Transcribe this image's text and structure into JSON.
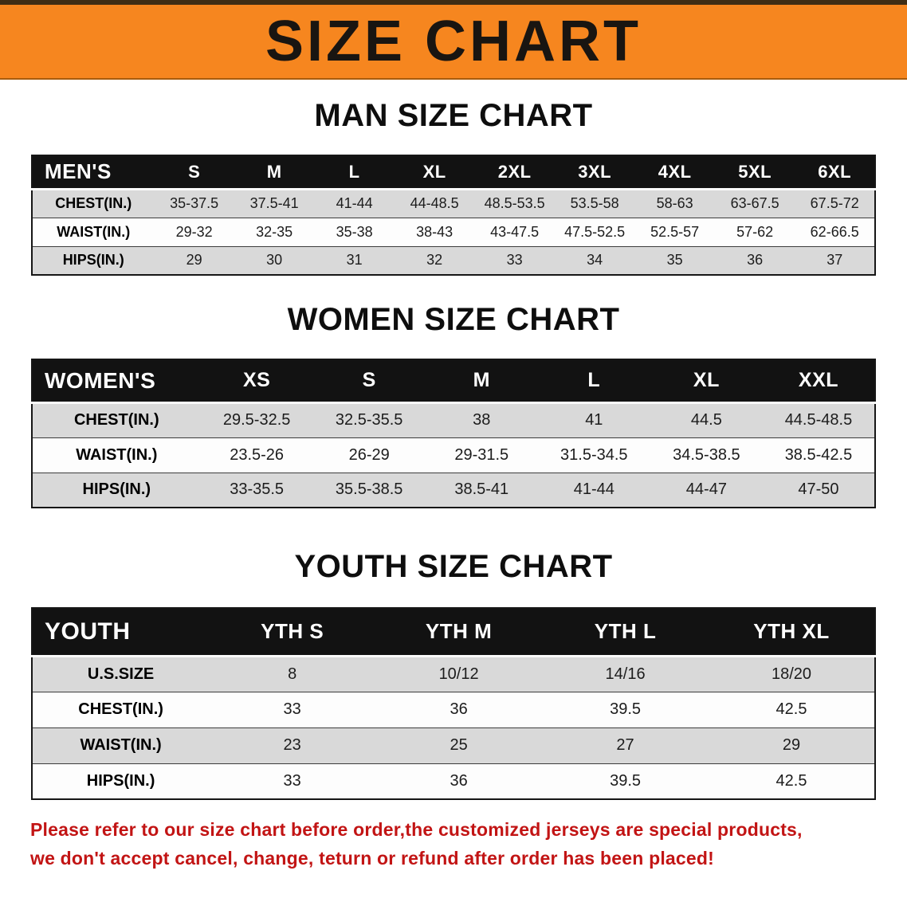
{
  "banner": {
    "title": "SIZE CHART"
  },
  "sections": [
    {
      "id": "men",
      "heading": "MAN SIZE CHART",
      "table": {
        "header": [
          "MEN'S",
          "S",
          "M",
          "L",
          "XL",
          "2XL",
          "3XL",
          "4XL",
          "5XL",
          "6XL"
        ],
        "rows": [
          {
            "label": "CHEST(IN.)",
            "values": [
              "35-37.5",
              "37.5-41",
              "41-44",
              "44-48.5",
              "48.5-53.5",
              "53.5-58",
              "58-63",
              "63-67.5",
              "67.5-72"
            ]
          },
          {
            "label": "WAIST(IN.)",
            "values": [
              "29-32",
              "32-35",
              "35-38",
              "38-43",
              "43-47.5",
              "47.5-52.5",
              "52.5-57",
              "57-62",
              "62-66.5"
            ]
          },
          {
            "label": "HIPS(IN.)",
            "values": [
              "29",
              "30",
              "31",
              "32",
              "33",
              "34",
              "35",
              "36",
              "37"
            ]
          }
        ]
      }
    },
    {
      "id": "women",
      "heading": "WOMEN SIZE CHART",
      "table": {
        "header": [
          "WOMEN'S",
          "XS",
          "S",
          "M",
          "L",
          "XL",
          "XXL"
        ],
        "rows": [
          {
            "label": "CHEST(IN.)",
            "values": [
              "29.5-32.5",
              "32.5-35.5",
              "38",
              "41",
              "44.5",
              "44.5-48.5"
            ]
          },
          {
            "label": "WAIST(IN.)",
            "values": [
              "23.5-26",
              "26-29",
              "29-31.5",
              "31.5-34.5",
              "34.5-38.5",
              "38.5-42.5"
            ]
          },
          {
            "label": "HIPS(IN.)",
            "values": [
              "33-35.5",
              "35.5-38.5",
              "38.5-41",
              "41-44",
              "44-47",
              "47-50"
            ]
          }
        ]
      }
    },
    {
      "id": "youth",
      "heading": "YOUTH SIZE CHART",
      "table": {
        "header": [
          "YOUTH",
          "YTH S",
          "YTH M",
          "YTH L",
          "YTH XL"
        ],
        "rows": [
          {
            "label": "U.S.SIZE",
            "values": [
              "8",
              "10/12",
              "14/16",
              "18/20"
            ]
          },
          {
            "label": "CHEST(IN.)",
            "values": [
              "33",
              "36",
              "39.5",
              "42.5"
            ]
          },
          {
            "label": "WAIST(IN.)",
            "values": [
              "23",
              "25",
              "27",
              "29"
            ]
          },
          {
            "label": "HIPS(IN.)",
            "values": [
              "33",
              "36",
              "39.5",
              "42.5"
            ]
          }
        ]
      }
    }
  ],
  "disclaimer": {
    "line1": "Please refer to our size chart before order,the customized jerseys are special products,",
    "line2": "we don't accept cancel, change, teturn or refund after order has been placed!"
  },
  "colors": {
    "banner-bg": "#F6861F",
    "header-bar": "#121212",
    "row-alt": "#D9D9D9",
    "disclaimer-red": "#C21414"
  }
}
